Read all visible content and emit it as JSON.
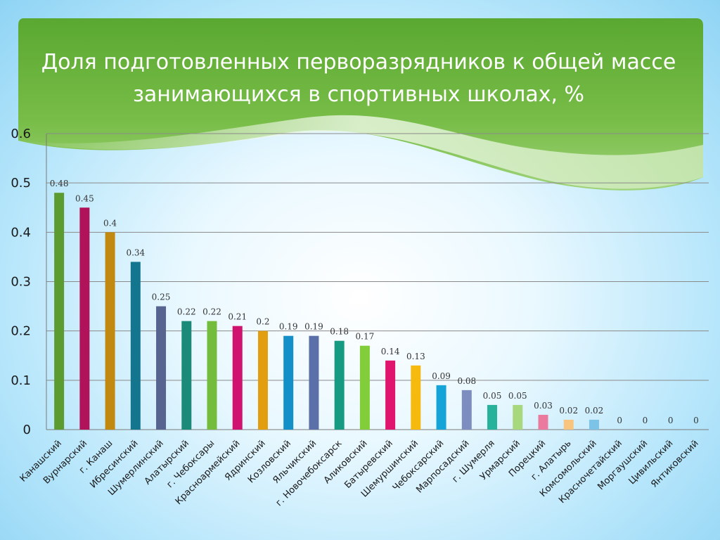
{
  "colors": {
    "banner_green": "#5fae36",
    "banner_light": "#8cc762",
    "background_blue": "#8fd4f4",
    "bar_colors": [
      "#5b9b2f",
      "#b0135a",
      "#c28911",
      "#14758f",
      "#56648f",
      "#1b8a79",
      "#73bc3c",
      "#d0136e",
      "#e29e0f",
      "#1290c7",
      "#5b6fa8",
      "#179a82",
      "#82cd3a",
      "#e0156e",
      "#f6b90e",
      "#14a4d8",
      "#7d8dbf",
      "#27b29c",
      "#a7d87e",
      "#ea7b9f",
      "#f9c57e",
      "#7cc3e7",
      "#b6d8a0",
      "#b6d8a0",
      "#b6d8a0",
      "#b6d8a0"
    ]
  },
  "chart_data": {
    "type": "bar",
    "title": "Доля подготовленных перворазрядников к общей массе занимающихся в спортивных школах, %",
    "categories": [
      "Канашский",
      "Вурнарский",
      "г. Канаш",
      "Ибресинский",
      "Шумерлинский",
      "Алатырский",
      "г. Чебоксары",
      "Красноармейский",
      "Ядринский",
      "Козловский",
      "Яльчикский",
      "г. Новочебоксарск",
      "Аликовский",
      "Батыревский",
      "Шемуршинский",
      "Чебоксарский",
      "Марпосадский",
      "г. Шумерля",
      "Урмарский",
      "Порецкий",
      "г. Алатырь",
      "Комсомольский",
      "Красночетайский",
      "Моргаушский",
      "Цивильский",
      "Янтиковский"
    ],
    "values": [
      0.48,
      0.45,
      0.4,
      0.34,
      0.25,
      0.22,
      0.22,
      0.21,
      0.2,
      0.19,
      0.19,
      0.18,
      0.17,
      0.14,
      0.13,
      0.09,
      0.08,
      0.05,
      0.05,
      0.03,
      0.02,
      0.02,
      0,
      0,
      0,
      0
    ],
    "value_labels": [
      "0.48",
      "0.45",
      "0.4",
      "0.34",
      "0.25",
      "0.22",
      "0.22",
      "0.21",
      "0.2",
      "0.19",
      "0.19",
      "0.18",
      "0.17",
      "0.14",
      "0.13",
      "0.09",
      "0.08",
      "0.05",
      "0.05",
      "0.03",
      "0.02",
      "0.02",
      "0",
      "0",
      "0",
      "0"
    ],
    "ylim": [
      0,
      0.6
    ],
    "yticks": [
      "0",
      "0.1",
      "0.2",
      "0.3",
      "0.4",
      "0.5",
      "0.6"
    ],
    "grid": true,
    "legend": "none",
    "xlabel": "",
    "ylabel": ""
  }
}
